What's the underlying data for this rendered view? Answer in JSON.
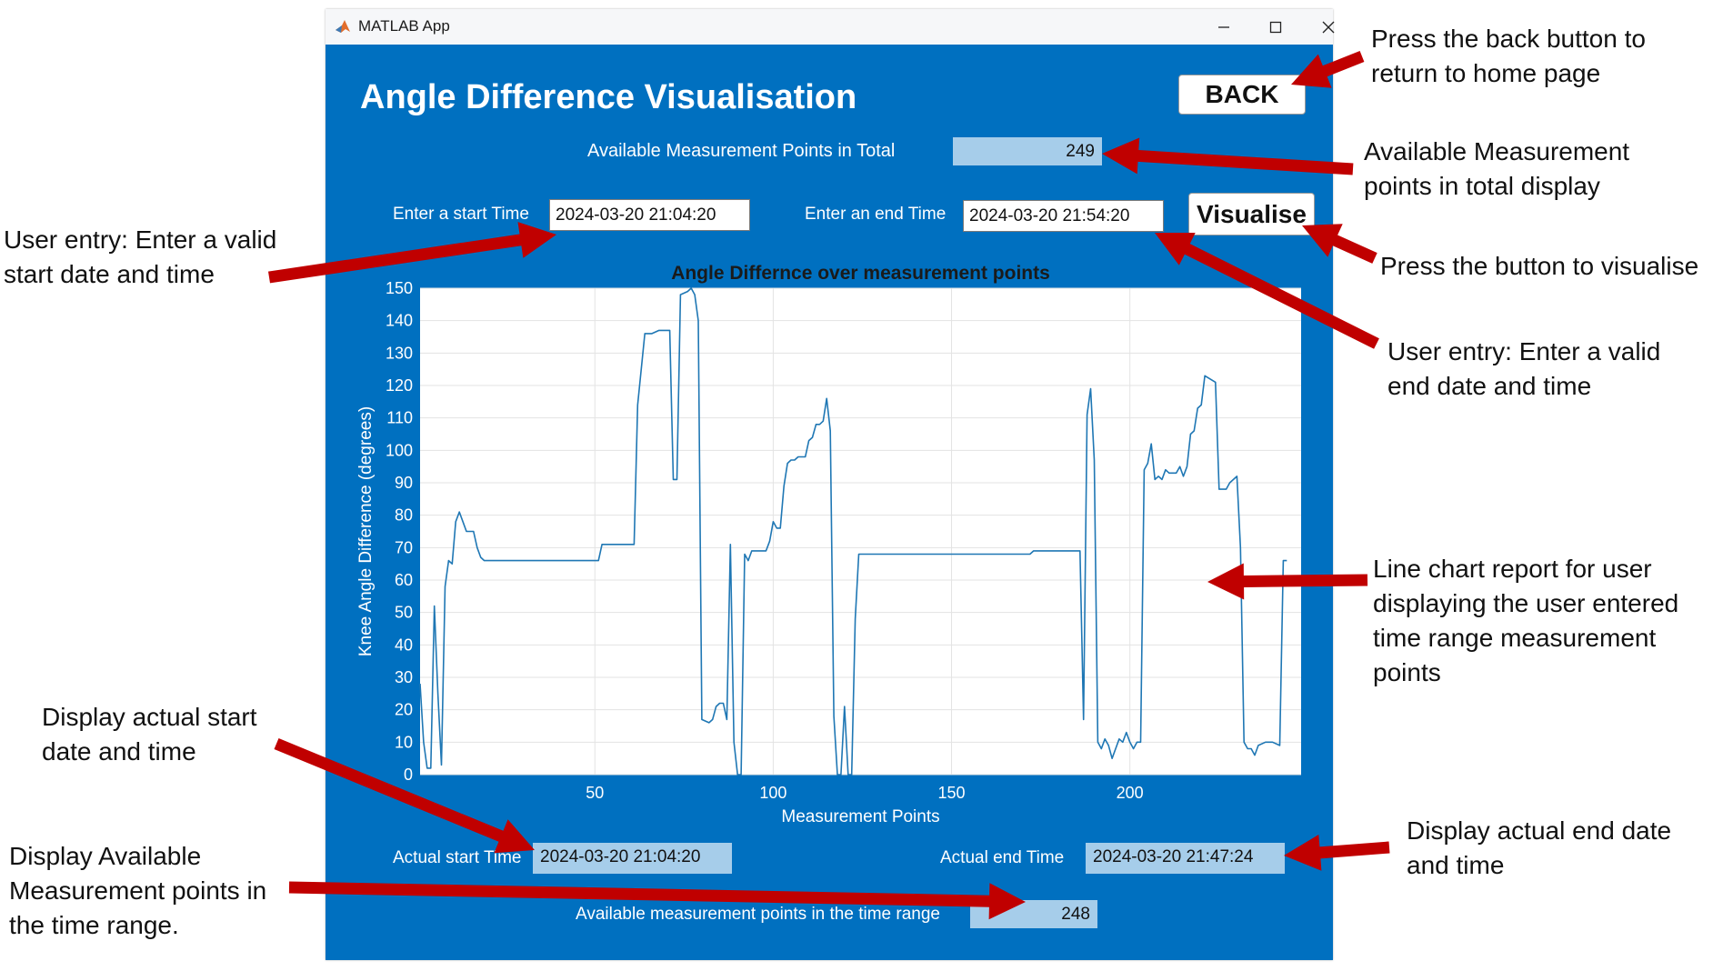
{
  "window": {
    "title": "MATLAB App",
    "accent": "#0070c0"
  },
  "app": {
    "title": "Angle Difference Visualisation",
    "back_label": "BACK",
    "total_points_label": "Available Measurement Points in Total",
    "total_points_value": "249",
    "start_label": "Enter a start Time",
    "start_value": "2024-03-20 21:04:20",
    "end_label": "Enter an end Time",
    "end_value": "2024-03-20 21:54:20",
    "visualise_label": "Visualise",
    "actual_start_label": "Actual start Time",
    "actual_start_value": "2024-03-20 21:04:20",
    "actual_end_label": "Actual end Time",
    "actual_end_value": "2024-03-20 21:47:24",
    "range_points_label": "Available measurement points in the time range",
    "range_points_value": "248"
  },
  "annotations": {
    "back": [
      "Press the back button to",
      "return to home page"
    ],
    "total": [
      "Available Measurement",
      "points in total display"
    ],
    "visualise": [
      "Press the button to visualise"
    ],
    "end_entry": [
      "User entry: Enter a valid",
      "end date and time"
    ],
    "start_entry": [
      "User entry: Enter a valid",
      "start date and time"
    ],
    "chart": [
      "Line chart report for user",
      "displaying the user entered",
      "time range measurement",
      "points"
    ],
    "actual_start": [
      "Display actual start",
      "date and time"
    ],
    "range_points": [
      "Display Available",
      "Measurement points in",
      "the time range."
    ],
    "actual_end": [
      "Display actual end date",
      "and time"
    ],
    "arrow_color": "#c00000"
  },
  "chart_data": {
    "type": "line",
    "title": "Angle Differnce over measurement points",
    "xlabel": "Measurement Points",
    "ylabel": "Knee Angle Difference (degrees)",
    "xlim": [
      1,
      248
    ],
    "ylim": [
      0,
      150
    ],
    "xticks": [
      50,
      100,
      150,
      200
    ],
    "yticks": [
      0,
      10,
      20,
      30,
      40,
      50,
      60,
      70,
      80,
      90,
      100,
      110,
      120,
      130,
      140,
      150
    ],
    "grid": true,
    "line_color": "#1f77b4",
    "points": [
      [
        1,
        28
      ],
      [
        2,
        10
      ],
      [
        3,
        2
      ],
      [
        4,
        2
      ],
      [
        5,
        52
      ],
      [
        6,
        25
      ],
      [
        7,
        3
      ],
      [
        8,
        58
      ],
      [
        9,
        66
      ],
      [
        10,
        65
      ],
      [
        11,
        78
      ],
      [
        12,
        81
      ],
      [
        13,
        78
      ],
      [
        14,
        75
      ],
      [
        15,
        75
      ],
      [
        16,
        75
      ],
      [
        17,
        70
      ],
      [
        18,
        67
      ],
      [
        19,
        66
      ],
      [
        20,
        66
      ],
      [
        30,
        66
      ],
      [
        40,
        66
      ],
      [
        50,
        66
      ],
      [
        51,
        66
      ],
      [
        52,
        71
      ],
      [
        60,
        71
      ],
      [
        61,
        71
      ],
      [
        62,
        114
      ],
      [
        64,
        136
      ],
      [
        66,
        136
      ],
      [
        68,
        137
      ],
      [
        70,
        137
      ],
      [
        71,
        137
      ],
      [
        72,
        91
      ],
      [
        73,
        91
      ],
      [
        74,
        148
      ],
      [
        76,
        149
      ],
      [
        77,
        150
      ],
      [
        78,
        148
      ],
      [
        79,
        140
      ],
      [
        80,
        17
      ],
      [
        82,
        16
      ],
      [
        83,
        17
      ],
      [
        84,
        21
      ],
      [
        85,
        22
      ],
      [
        86,
        22
      ],
      [
        87,
        17
      ],
      [
        88,
        71
      ],
      [
        89,
        10
      ],
      [
        90,
        0
      ],
      [
        91,
        0
      ],
      [
        92,
        68
      ],
      [
        93,
        66
      ],
      [
        94,
        69
      ],
      [
        96,
        69
      ],
      [
        98,
        69
      ],
      [
        99,
        72
      ],
      [
        100,
        78
      ],
      [
        101,
        76
      ],
      [
        102,
        76
      ],
      [
        103,
        89
      ],
      [
        104,
        96
      ],
      [
        105,
        97
      ],
      [
        106,
        97
      ],
      [
        107,
        98
      ],
      [
        108,
        98
      ],
      [
        109,
        98
      ],
      [
        110,
        103
      ],
      [
        111,
        104
      ],
      [
        112,
        108
      ],
      [
        113,
        108
      ],
      [
        114,
        109
      ],
      [
        115,
        116
      ],
      [
        116,
        106
      ],
      [
        117,
        18
      ],
      [
        118,
        0
      ],
      [
        119,
        0
      ],
      [
        120,
        21
      ],
      [
        121,
        0
      ],
      [
        122,
        0
      ],
      [
        123,
        48
      ],
      [
        124,
        68
      ],
      [
        126,
        68
      ],
      [
        130,
        68
      ],
      [
        140,
        68
      ],
      [
        150,
        68
      ],
      [
        160,
        68
      ],
      [
        170,
        68
      ],
      [
        172,
        68
      ],
      [
        173,
        69
      ],
      [
        180,
        69
      ],
      [
        186,
        69
      ],
      [
        187,
        17
      ],
      [
        188,
        111
      ],
      [
        189,
        119
      ],
      [
        190,
        97
      ],
      [
        191,
        10
      ],
      [
        192,
        8
      ],
      [
        193,
        11
      ],
      [
        194,
        9
      ],
      [
        195,
        5
      ],
      [
        196,
        8
      ],
      [
        197,
        11
      ],
      [
        198,
        10
      ],
      [
        199,
        13
      ],
      [
        200,
        10
      ],
      [
        201,
        8
      ],
      [
        202,
        10
      ],
      [
        203,
        10
      ],
      [
        204,
        94
      ],
      [
        205,
        96
      ],
      [
        206,
        102
      ],
      [
        207,
        91
      ],
      [
        208,
        92
      ],
      [
        209,
        91
      ],
      [
        210,
        94
      ],
      [
        211,
        93
      ],
      [
        212,
        93
      ],
      [
        213,
        93
      ],
      [
        214,
        95
      ],
      [
        215,
        92
      ],
      [
        216,
        95
      ],
      [
        217,
        105
      ],
      [
        218,
        106
      ],
      [
        219,
        113
      ],
      [
        220,
        114
      ],
      [
        221,
        123
      ],
      [
        224,
        121
      ],
      [
        225,
        88
      ],
      [
        227,
        88
      ],
      [
        228,
        90
      ],
      [
        230,
        92
      ],
      [
        231,
        70
      ],
      [
        232,
        10
      ],
      [
        233,
        8
      ],
      [
        234,
        8
      ],
      [
        235,
        6
      ],
      [
        236,
        9
      ],
      [
        238,
        10
      ],
      [
        240,
        10
      ],
      [
        242,
        9
      ],
      [
        243,
        66
      ],
      [
        244,
        66
      ]
    ]
  }
}
